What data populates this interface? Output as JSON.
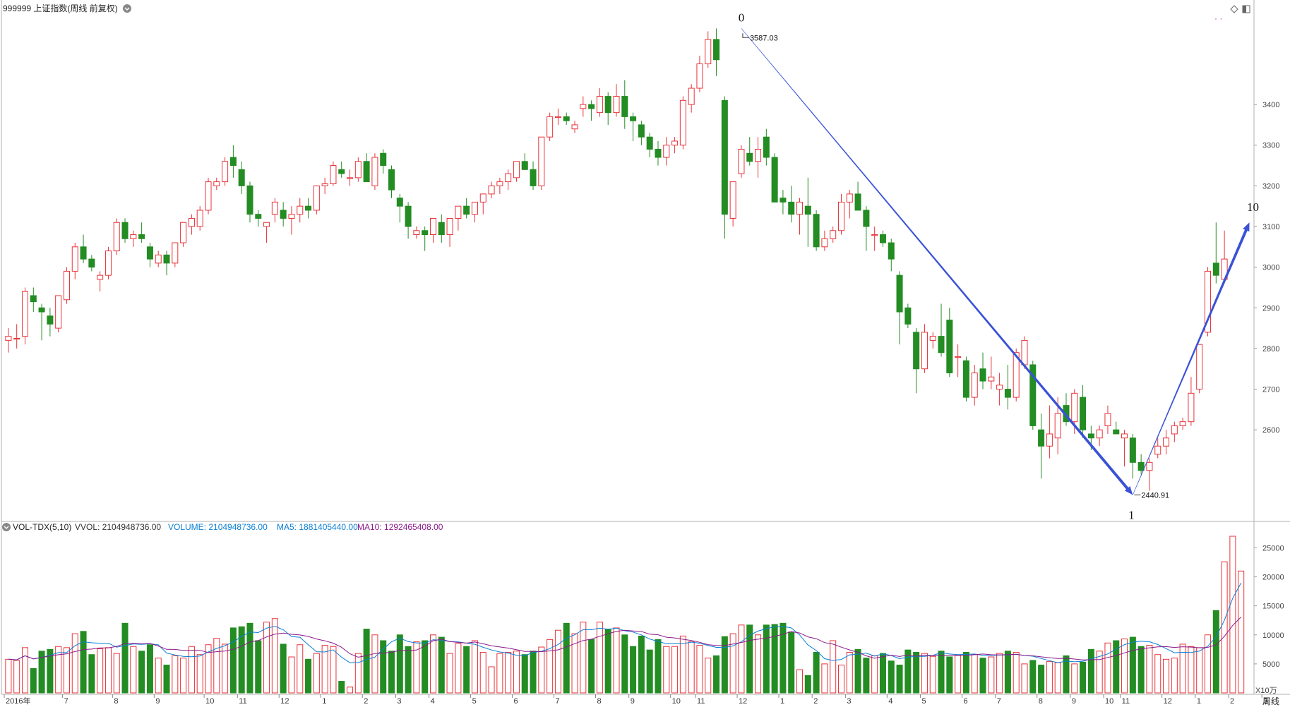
{
  "header": {
    "title": "999999 上证指数(周线 前复权)",
    "top_right_icons": [
      "diamond-icon",
      "panel-toggle-icon"
    ]
  },
  "volume_panel": {
    "title": "VOL-TDX(5,10)",
    "vvol_label": "VVOL: 2104948736.00",
    "volume_label": "VOLUME: 2104948736.00",
    "ma5_label": "MA5: 1881405440.00",
    "ma10_label": "MA10: 1292465408.00",
    "unit_label": "X10万",
    "colors": {
      "volume": "#0a7fd6",
      "ma5": "#0a7fd6",
      "ma10": "#8b1a8b",
      "vvol": "#333333"
    }
  },
  "x_axis": {
    "corner_label": "周线",
    "labels": [
      {
        "text": "2016年",
        "i": 0
      },
      {
        "text": "7",
        "i": 7
      },
      {
        "text": "8",
        "i": 13
      },
      {
        "text": "9",
        "i": 18
      },
      {
        "text": "10",
        "i": 24
      },
      {
        "text": "11",
        "i": 28
      },
      {
        "text": "12",
        "i": 33
      },
      {
        "text": "1",
        "i": 38
      },
      {
        "text": "2",
        "i": 43
      },
      {
        "text": "3",
        "i": 47
      },
      {
        "text": "4",
        "i": 51
      },
      {
        "text": "5",
        "i": 56
      },
      {
        "text": "6",
        "i": 61
      },
      {
        "text": "7",
        "i": 66
      },
      {
        "text": "8",
        "i": 71
      },
      {
        "text": "9",
        "i": 75
      },
      {
        "text": "10",
        "i": 80
      },
      {
        "text": "11",
        "i": 83
      },
      {
        "text": "12",
        "i": 88
      },
      {
        "text": "1",
        "i": 93
      },
      {
        "text": "2",
        "i": 97
      },
      {
        "text": "3",
        "i": 101
      },
      {
        "text": "4",
        "i": 106
      },
      {
        "text": "5",
        "i": 110
      },
      {
        "text": "6",
        "i": 115
      },
      {
        "text": "7",
        "i": 119
      },
      {
        "text": "8",
        "i": 124
      },
      {
        "text": "9",
        "i": 128
      },
      {
        "text": "10",
        "i": 132
      },
      {
        "text": "11",
        "i": 134
      },
      {
        "text": "12",
        "i": 139
      },
      {
        "text": "1",
        "i": 143
      },
      {
        "text": "2",
        "i": 147
      },
      {
        "text": "3",
        "i": 151
      }
    ]
  },
  "chart_data": [
    {
      "type": "candlestick",
      "title": "999999 上证指数(周线 前复权)",
      "ylim": [
        2380,
        3650
      ],
      "y_ticks": [
        2600,
        2700,
        2800,
        2900,
        3000,
        3100,
        3200,
        3300,
        3400
      ],
      "candles_ohlc": [
        [
          2820,
          2850,
          2790,
          2830
        ],
        [
          2825,
          2860,
          2800,
          2825
        ],
        [
          2830,
          2950,
          2810,
          2940
        ],
        [
          2930,
          2950,
          2890,
          2915
        ],
        [
          2900,
          2910,
          2820,
          2890
        ],
        [
          2880,
          2900,
          2830,
          2860
        ],
        [
          2850,
          2920,
          2840,
          2930
        ],
        [
          2920,
          3000,
          2910,
          2990
        ],
        [
          2990,
          3060,
          2970,
          3050
        ],
        [
          3050,
          3080,
          3010,
          3020
        ],
        [
          3020,
          3030,
          2990,
          3000
        ],
        [
          2970,
          2990,
          2940,
          2980
        ],
        [
          2980,
          3050,
          2970,
          3040
        ],
        [
          3040,
          3120,
          3030,
          3110
        ],
        [
          3110,
          3120,
          3060,
          3070
        ],
        [
          3070,
          3090,
          3050,
          3080
        ],
        [
          3080,
          3110,
          3060,
          3070
        ],
        [
          3050,
          3060,
          3000,
          3020
        ],
        [
          3010,
          3040,
          3000,
          3030
        ],
        [
          3030,
          3040,
          2980,
          3010
        ],
        [
          3010,
          3060,
          3000,
          3060
        ],
        [
          3060,
          3110,
          3050,
          3110
        ],
        [
          3100,
          3130,
          3080,
          3120
        ],
        [
          3100,
          3150,
          3090,
          3140
        ],
        [
          3140,
          3220,
          3130,
          3210
        ],
        [
          3200,
          3220,
          3190,
          3210
        ],
        [
          3210,
          3270,
          3200,
          3260
        ],
        [
          3270,
          3300,
          3220,
          3250
        ],
        [
          3240,
          3260,
          3180,
          3200
        ],
        [
          3200,
          3210,
          3110,
          3130
        ],
        [
          3130,
          3140,
          3100,
          3120
        ],
        [
          3100,
          3110,
          3060,
          3110
        ],
        [
          3130,
          3170,
          3110,
          3160
        ],
        [
          3140,
          3160,
          3100,
          3120
        ],
        [
          3120,
          3150,
          3080,
          3130
        ],
        [
          3130,
          3170,
          3110,
          3150
        ],
        [
          3150,
          3170,
          3120,
          3140
        ],
        [
          3140,
          3200,
          3130,
          3200
        ],
        [
          3200,
          3220,
          3180,
          3205
        ],
        [
          3205,
          3260,
          3200,
          3250
        ],
        [
          3240,
          3260,
          3220,
          3230
        ],
        [
          3220,
          3240,
          3200,
          3220
        ],
        [
          3220,
          3270,
          3210,
          3260
        ],
        [
          3260,
          3280,
          3240,
          3210
        ],
        [
          3200,
          3280,
          3190,
          3270
        ],
        [
          3280,
          3290,
          3230,
          3250
        ],
        [
          3240,
          3250,
          3170,
          3190
        ],
        [
          3170,
          3180,
          3110,
          3150
        ],
        [
          3150,
          3160,
          3070,
          3100
        ],
        [
          3080,
          3100,
          3070,
          3090
        ],
        [
          3090,
          3100,
          3040,
          3080
        ],
        [
          3080,
          3100,
          3060,
          3120
        ],
        [
          3110,
          3130,
          3060,
          3080
        ],
        [
          3080,
          3100,
          3050,
          3120
        ],
        [
          3120,
          3140,
          3090,
          3150
        ],
        [
          3150,
          3170,
          3120,
          3130
        ],
        [
          3130,
          3150,
          3110,
          3160
        ],
        [
          3160,
          3180,
          3130,
          3180
        ],
        [
          3180,
          3210,
          3170,
          3200
        ],
        [
          3200,
          3220,
          3180,
          3210
        ],
        [
          3210,
          3240,
          3190,
          3230
        ],
        [
          3220,
          3250,
          3210,
          3260
        ],
        [
          3260,
          3280,
          3240,
          3240
        ],
        [
          3240,
          3260,
          3190,
          3200
        ],
        [
          3200,
          3320,
          3190,
          3320
        ],
        [
          3320,
          3380,
          3310,
          3370
        ],
        [
          3370,
          3390,
          3350,
          3370
        ],
        [
          3370,
          3380,
          3350,
          3360
        ],
        [
          3340,
          3360,
          3330,
          3350
        ],
        [
          3390,
          3420,
          3370,
          3400
        ],
        [
          3400,
          3410,
          3360,
          3390
        ],
        [
          3380,
          3440,
          3370,
          3420
        ],
        [
          3420,
          3430,
          3350,
          3380
        ],
        [
          3380,
          3450,
          3370,
          3420
        ],
        [
          3420,
          3460,
          3340,
          3370
        ],
        [
          3370,
          3380,
          3310,
          3360
        ],
        [
          3350,
          3360,
          3300,
          3320
        ],
        [
          3320,
          3330,
          3270,
          3290
        ],
        [
          3290,
          3310,
          3250,
          3270
        ],
        [
          3270,
          3320,
          3250,
          3300
        ],
        [
          3300,
          3320,
          3280,
          3310
        ],
        [
          3300,
          3420,
          3290,
          3410
        ],
        [
          3400,
          3450,
          3380,
          3440
        ],
        [
          3440,
          3520,
          3430,
          3500
        ],
        [
          3500,
          3580,
          3490,
          3560
        ],
        [
          3560,
          3587,
          3470,
          3510
        ],
        [
          3410,
          3420,
          3070,
          3130
        ],
        [
          3120,
          3180,
          3100,
          3210
        ],
        [
          3230,
          3300,
          3220,
          3290
        ],
        [
          3280,
          3320,
          3250,
          3260
        ],
        [
          3260,
          3320,
          3220,
          3290
        ],
        [
          3320,
          3340,
          3250,
          3270
        ],
        [
          3270,
          3280,
          3170,
          3160
        ],
        [
          3170,
          3190,
          3130,
          3160
        ],
        [
          3160,
          3200,
          3110,
          3130
        ],
        [
          3130,
          3170,
          3080,
          3160
        ],
        [
          3150,
          3220,
          3050,
          3130
        ],
        [
          3130,
          3140,
          3040,
          3050
        ],
        [
          3050,
          3090,
          3040,
          3070
        ],
        [
          3070,
          3100,
          3060,
          3090
        ],
        [
          3090,
          3180,
          3080,
          3160
        ],
        [
          3160,
          3190,
          3120,
          3180
        ],
        [
          3180,
          3210,
          3160,
          3140
        ],
        [
          3140,
          3150,
          3040,
          3100
        ],
        [
          3080,
          3100,
          3040,
          3080
        ],
        [
          3080,
          3090,
          3050,
          3060
        ],
        [
          3060,
          3070,
          2990,
          3020
        ],
        [
          2980,
          2990,
          2810,
          2890
        ],
        [
          2900,
          2910,
          2850,
          2860
        ],
        [
          2840,
          2850,
          2690,
          2750
        ],
        [
          2750,
          2860,
          2740,
          2840
        ],
        [
          2820,
          2840,
          2800,
          2830
        ],
        [
          2830,
          2910,
          2780,
          2790
        ],
        [
          2870,
          2900,
          2730,
          2740
        ],
        [
          2780,
          2810,
          2730,
          2780
        ],
        [
          2770,
          2780,
          2670,
          2680
        ],
        [
          2680,
          2760,
          2660,
          2740
        ],
        [
          2750,
          2790,
          2700,
          2720
        ],
        [
          2720,
          2780,
          2700,
          2730
        ],
        [
          2700,
          2740,
          2660,
          2710
        ],
        [
          2700,
          2760,
          2650,
          2680
        ],
        [
          2680,
          2800,
          2670,
          2790
        ],
        [
          2760,
          2830,
          2750,
          2820
        ],
        [
          2760,
          2770,
          2600,
          2610
        ],
        [
          2600,
          2640,
          2480,
          2560
        ],
        [
          2560,
          2660,
          2530,
          2590
        ],
        [
          2580,
          2680,
          2540,
          2640
        ],
        [
          2660,
          2690,
          2610,
          2620
        ],
        [
          2620,
          2700,
          2590,
          2690
        ],
        [
          2680,
          2710,
          2580,
          2600
        ],
        [
          2590,
          2610,
          2550,
          2580
        ],
        [
          2580,
          2610,
          2560,
          2600
        ],
        [
          2610,
          2660,
          2590,
          2640
        ],
        [
          2600,
          2620,
          2590,
          2590
        ],
        [
          2580,
          2600,
          2510,
          2590
        ],
        [
          2580,
          2590,
          2480,
          2520
        ],
        [
          2520,
          2540,
          2490,
          2500
        ],
        [
          2500,
          2530,
          2450,
          2520
        ],
        [
          2540,
          2580,
          2530,
          2560
        ],
        [
          2560,
          2600,
          2540,
          2580
        ],
        [
          2590,
          2620,
          2570,
          2610
        ],
        [
          2610,
          2630,
          2600,
          2620
        ],
        [
          2620,
          2730,
          2610,
          2690
        ],
        [
          2700,
          2810,
          2690,
          2810
        ],
        [
          2840,
          3000,
          2830,
          2990
        ],
        [
          3010,
          3110,
          2960,
          2980
        ],
        [
          2970,
          3090,
          2960,
          3020
        ]
      ],
      "annotations": [
        {
          "text": "0",
          "i": 88,
          "price": 3587
        },
        {
          "text": "3587.03",
          "i": 88,
          "price": 3587
        },
        {
          "text": "1",
          "i": 135,
          "price": 2440
        },
        {
          "text": "2440.91",
          "i": 135,
          "price": 2440
        },
        {
          "text": "10",
          "i": 149,
          "price": 3110
        }
      ],
      "trend_lines": [
        [
          {
            "i": 88,
            "price": 3587
          },
          {
            "i": 135,
            "price": 2440
          }
        ],
        [
          {
            "i": 135,
            "price": 2440
          },
          {
            "i": 149,
            "price": 3110
          }
        ]
      ],
      "colors": {
        "up": "#e8333a",
        "down": "#238c23",
        "trend": "#3a52d6"
      }
    },
    {
      "type": "bar",
      "title": "VOL-TDX(5,10)",
      "ylim": [
        0,
        27000
      ],
      "y_ticks": [
        5000,
        10000,
        15000,
        20000,
        25000
      ],
      "values": [
        5800,
        5600,
        7800,
        4200,
        7200,
        7500,
        8000,
        7800,
        10200,
        10600,
        6600,
        7600,
        7800,
        6800,
        12000,
        8000,
        7200,
        8300,
        6000,
        4800,
        6400,
        6000,
        8000,
        6600,
        8300,
        9400,
        8400,
        11200,
        11400,
        12000,
        9000,
        12200,
        12800,
        8400,
        6200,
        8300,
        5800,
        6800,
        8200,
        8000,
        2000,
        1000,
        6800,
        11000,
        10000,
        9000,
        7200,
        10000,
        8000,
        8800,
        9000,
        10000,
        9600,
        6800,
        8500,
        8000,
        9000,
        7000,
        4500,
        6800,
        7000,
        7200,
        6600,
        7200,
        7900,
        9200,
        10800,
        12000,
        10200,
        12200,
        9200,
        12200,
        11000,
        11200,
        10000,
        8000,
        9800,
        7400,
        9200,
        8000,
        8000,
        9800,
        8800,
        8200,
        6000,
        6400,
        9700,
        10200,
        11700,
        11700,
        10000,
        11700,
        11800,
        12000,
        10500,
        4000,
        3000,
        7000,
        5000,
        9000,
        4800,
        7000,
        7500,
        6000,
        6400,
        6800,
        5500,
        4800,
        7400,
        7000,
        6800,
        6300,
        7200,
        6200,
        6500,
        7000,
        6600,
        6000,
        6200,
        6800,
        7200,
        7000,
        5000,
        5600,
        4800,
        5400,
        5200,
        6400,
        5000,
        5300,
        7500,
        7200,
        8600,
        9000,
        9300,
        9600,
        8000,
        8200,
        6600,
        5800,
        6000,
        8400,
        8000,
        7800,
        10000,
        14200,
        22600,
        27000,
        21000
      ],
      "ma5_last": 18814,
      "ma10_last": 12925,
      "colors": {
        "up": "#e8333a",
        "down": "#238c23",
        "ma5": "#0a7fd6",
        "ma10": "#8b1a8b"
      }
    }
  ]
}
